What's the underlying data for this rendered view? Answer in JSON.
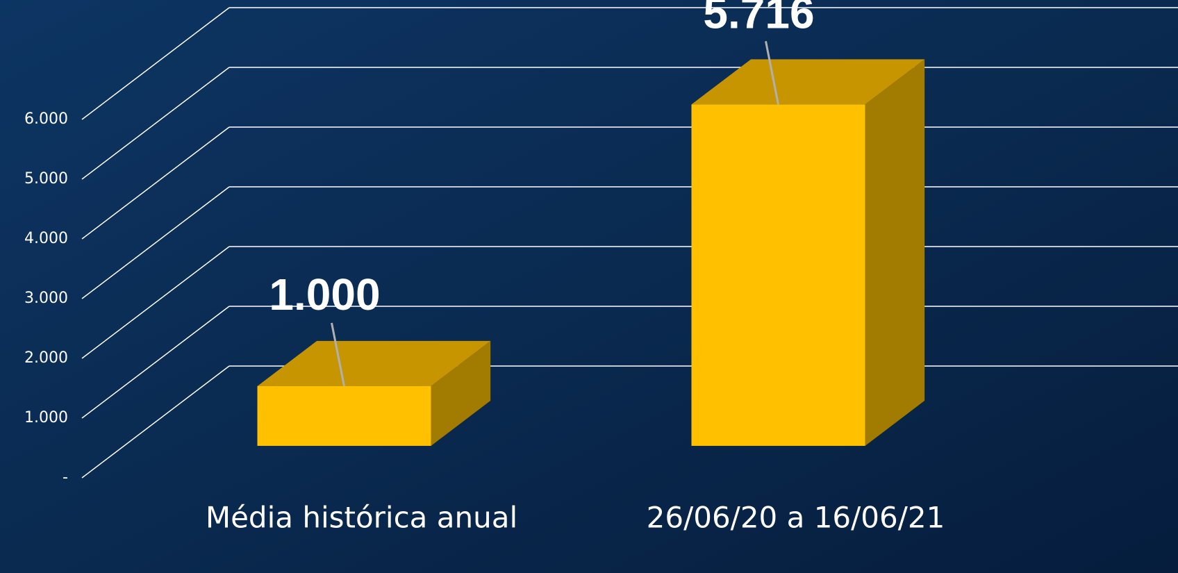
{
  "chart_data": {
    "type": "bar3d",
    "categories": [
      "Média histórica anual",
      "26/06/20 a 16/06/21"
    ],
    "values": [
      1000,
      5716
    ],
    "value_labels": [
      "1.000",
      "5.716"
    ],
    "color": "#ffc000",
    "ylim": [
      0,
      6000
    ],
    "yticks": [
      {
        "value": 0,
        "label": "-"
      },
      {
        "value": 1000,
        "label": "1.000"
      },
      {
        "value": 2000,
        "label": "2.000"
      },
      {
        "value": 3000,
        "label": "3.000"
      },
      {
        "value": 4000,
        "label": "4.000"
      },
      {
        "value": 5000,
        "label": "5.000"
      },
      {
        "value": 6000,
        "label": "6.000"
      }
    ],
    "grid": true
  }
}
